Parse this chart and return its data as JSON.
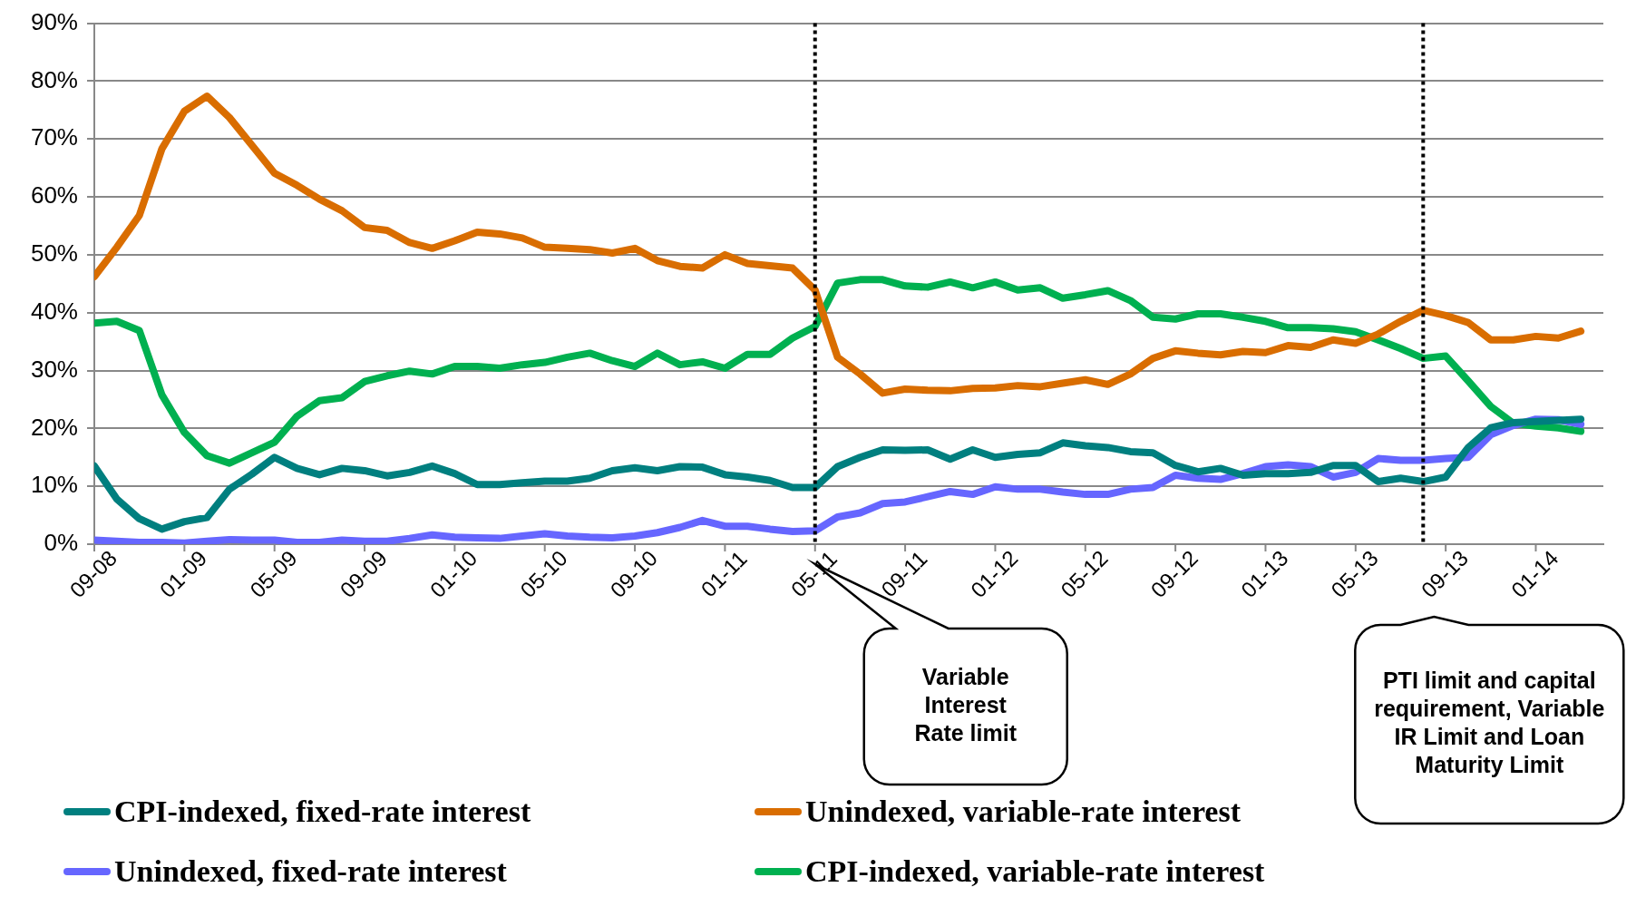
{
  "chart_data": {
    "type": "line",
    "x": [
      "2008-09",
      "2008-10",
      "2008-11",
      "2008-12",
      "2009-01",
      "2009-02",
      "2009-03",
      "2009-04",
      "2009-05",
      "2009-06",
      "2009-07",
      "2009-08",
      "2009-09",
      "2009-10",
      "2009-11",
      "2009-12",
      "2010-01",
      "2010-02",
      "2010-03",
      "2010-04",
      "2010-05",
      "2010-06",
      "2010-07",
      "2010-08",
      "2010-09",
      "2010-10",
      "2010-11",
      "2010-12",
      "2011-01",
      "2011-02",
      "2011-03",
      "2011-04",
      "2011-05",
      "2011-06",
      "2011-07",
      "2011-08",
      "2011-09",
      "2011-10",
      "2011-11",
      "2011-12",
      "2012-01",
      "2012-02",
      "2012-03",
      "2012-04",
      "2012-05",
      "2012-06",
      "2012-07",
      "2012-08",
      "2012-09",
      "2012-10",
      "2012-11",
      "2012-12",
      "2013-01",
      "2013-02",
      "2013-03",
      "2013-04",
      "2013-05",
      "2013-06",
      "2013-07",
      "2013-08",
      "2013-09",
      "2013-10",
      "2013-11",
      "2013-12",
      "2014-01",
      "2014-02",
      "2014-03"
    ],
    "series": [
      {
        "name": "CPI-indexed, fixed-rate interest",
        "color": "#007f7f",
        "values": [
          13.5,
          7.8,
          4.4,
          2.6,
          3.9,
          4.6,
          9.5,
          12.1,
          15.0,
          13.1,
          12.0,
          13.1,
          12.7,
          11.8,
          12.4,
          13.5,
          12.2,
          10.3,
          10.3,
          10.6,
          10.9,
          10.9,
          11.4,
          12.7,
          13.2,
          12.7,
          13.4,
          13.3,
          12.0,
          11.6,
          11.0,
          9.8,
          9.8,
          13.4,
          15.0,
          16.3,
          16.2,
          16.3,
          14.7,
          16.3,
          15.0,
          15.5,
          15.8,
          17.5,
          17.0,
          16.7,
          16.0,
          15.8,
          13.6,
          12.5,
          13.1,
          11.9,
          12.2,
          12.2,
          12.4,
          13.6,
          13.6,
          10.8,
          11.4,
          10.8,
          11.6,
          16.7,
          20.1,
          21.0,
          21.2,
          21.4,
          21.6
        ]
      },
      {
        "name": "Unindexed, variable-rate interest",
        "color": "#d96d00",
        "values": [
          46.2,
          51.3,
          56.8,
          68.3,
          74.8,
          77.4,
          73.7,
          68.9,
          64.1,
          62.0,
          59.6,
          57.6,
          54.7,
          54.2,
          52.1,
          51.1,
          52.4,
          53.9,
          53.6,
          52.9,
          51.3,
          51.1,
          50.9,
          50.3,
          51.1,
          49.0,
          48.0,
          47.7,
          50.0,
          48.5,
          48.1,
          47.7,
          43.9,
          32.3,
          29.4,
          26.1,
          26.8,
          26.6,
          26.5,
          26.9,
          27.0,
          27.4,
          27.2,
          27.8,
          28.4,
          27.6,
          29.4,
          32.1,
          33.4,
          33.0,
          32.7,
          33.3,
          33.1,
          34.3,
          34.0,
          35.3,
          34.7,
          36.3,
          38.5,
          40.4,
          39.5,
          38.3,
          35.3,
          35.3,
          35.9,
          35.6,
          36.8
        ]
      },
      {
        "name": "Unindexed, fixed-rate interest",
        "color": "#6666ff",
        "values": [
          0.7,
          0.5,
          0.3,
          0.3,
          0.2,
          0.5,
          0.8,
          0.7,
          0.7,
          0.3,
          0.3,
          0.7,
          0.5,
          0.5,
          1.0,
          1.6,
          1.2,
          1.1,
          1.0,
          1.4,
          1.8,
          1.4,
          1.2,
          1.1,
          1.4,
          2.0,
          2.9,
          4.1,
          3.1,
          3.1,
          2.6,
          2.2,
          2.3,
          4.7,
          5.4,
          7.0,
          7.3,
          8.2,
          9.1,
          8.6,
          9.9,
          9.5,
          9.5,
          9.0,
          8.6,
          8.6,
          9.5,
          9.8,
          11.9,
          11.4,
          11.2,
          12.2,
          13.4,
          13.7,
          13.4,
          11.6,
          12.4,
          14.8,
          14.5,
          14.5,
          14.8,
          15.0,
          18.9,
          20.5,
          21.6,
          21.5,
          20.7
        ]
      },
      {
        "name": "CPI-indexed, variable-rate interest",
        "color": "#00b050",
        "values": [
          38.2,
          38.5,
          36.9,
          25.8,
          19.3,
          15.3,
          14.0,
          15.8,
          17.6,
          22.1,
          24.8,
          25.3,
          28.1,
          29.1,
          29.9,
          29.4,
          30.7,
          30.7,
          30.4,
          31.0,
          31.4,
          32.3,
          33.0,
          31.7,
          30.7,
          33.0,
          31.0,
          31.5,
          30.4,
          32.8,
          32.8,
          35.6,
          37.6,
          45.1,
          45.7,
          45.7,
          44.6,
          44.4,
          45.3,
          44.3,
          45.3,
          43.9,
          44.3,
          42.5,
          43.1,
          43.8,
          42.1,
          39.2,
          38.9,
          39.8,
          39.8,
          39.2,
          38.5,
          37.4,
          37.4,
          37.2,
          36.7,
          35.3,
          33.8,
          32.1,
          32.5,
          28.2,
          23.8,
          20.9,
          20.4,
          20.1,
          19.5
        ]
      }
    ],
    "xlim": [
      "2008-09",
      "2014-04"
    ],
    "xticks": [
      {
        "value": "2008-09",
        "label": "09-08"
      },
      {
        "value": "2009-01",
        "label": "01-09"
      },
      {
        "value": "2009-05",
        "label": "05-09"
      },
      {
        "value": "2009-09",
        "label": "09-09"
      },
      {
        "value": "2010-01",
        "label": "01-10"
      },
      {
        "value": "2010-05",
        "label": "05-10"
      },
      {
        "value": "2010-09",
        "label": "09-10"
      },
      {
        "value": "2011-01",
        "label": "01-11"
      },
      {
        "value": "2011-05",
        "label": "05-11"
      },
      {
        "value": "2011-09",
        "label": "09-11"
      },
      {
        "value": "2012-01",
        "label": "01-12"
      },
      {
        "value": "2012-05",
        "label": "05-12"
      },
      {
        "value": "2012-09",
        "label": "09-12"
      },
      {
        "value": "2013-01",
        "label": "01-13"
      },
      {
        "value": "2013-05",
        "label": "05-13"
      },
      {
        "value": "2013-09",
        "label": "09-13"
      },
      {
        "value": "2014-01",
        "label": "01-14"
      }
    ],
    "ylim": [
      0,
      90
    ],
    "yticks": [
      {
        "value": 0,
        "label": "0%"
      },
      {
        "value": 10,
        "label": "10%"
      },
      {
        "value": 20,
        "label": "20%"
      },
      {
        "value": 30,
        "label": "30%"
      },
      {
        "value": 40,
        "label": "40%"
      },
      {
        "value": 50,
        "label": "50%"
      },
      {
        "value": 60,
        "label": "60%"
      },
      {
        "value": 70,
        "label": "70%"
      },
      {
        "value": 80,
        "label": "80%"
      },
      {
        "value": 90,
        "label": "90%"
      }
    ],
    "grid": "y",
    "legend": "bottom",
    "marker": "none",
    "line_style": "solid",
    "ref_lines": [
      {
        "axis": "x",
        "value": "2011-05",
        "color": "#000000",
        "line_style": "dotted"
      },
      {
        "axis": "x",
        "value": "2013-08",
        "color": "#000000",
        "line_style": "dotted"
      }
    ],
    "annotations": [
      "Variable Interest Rate limit",
      "PTI limit and capital requirement, Variable IR Limit and Loan Maturity Limit"
    ]
  }
}
